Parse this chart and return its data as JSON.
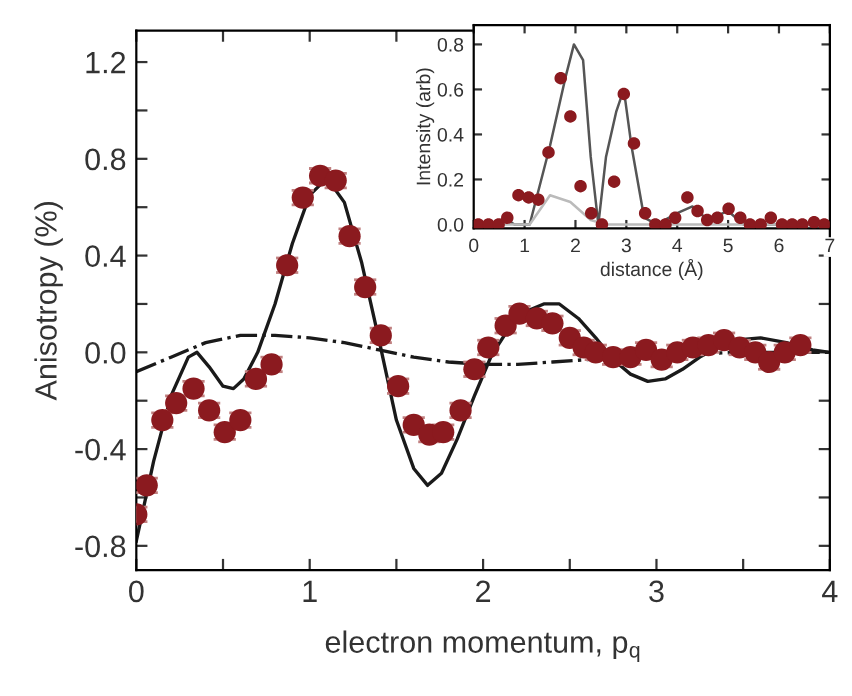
{
  "chart_data": [
    {
      "type": "scatter",
      "xlabel": "electron momentum, p$_{q}$",
      "ylabel": "Anisotropy (%)",
      "xlim": [
        0,
        4
      ],
      "ylim": [
        -0.9,
        1.33
      ],
      "xticks": [
        0,
        {
          "value": 0.5,
          "label": null
        },
        1,
        {
          "value": 1.5,
          "label": null
        },
        2,
        {
          "value": 2.5,
          "label": null
        },
        3,
        {
          "value": 3.5,
          "label": null
        },
        4
      ],
      "yticks": [
        {
          "value": -0.8,
          "label": "-0.8"
        },
        {
          "value": -0.6,
          "label": null
        },
        {
          "value": -0.4,
          "label": "-0.4"
        },
        {
          "value": -0.2,
          "label": null
        },
        {
          "value": 0.0,
          "label": "0.0"
        },
        {
          "value": 0.2,
          "label": null
        },
        {
          "value": 0.4,
          "label": "0.4"
        },
        {
          "value": 0.6,
          "label": null
        },
        {
          "value": 0.8,
          "label": "0.8"
        },
        {
          "value": 1.0,
          "label": null
        },
        {
          "value": 1.2,
          "label": "1.2"
        }
      ],
      "legend": false,
      "series": [
        {
          "type": "line",
          "color": "#1a1a1a",
          "line_style": "solid",
          "marker": "none",
          "x": [
            0,
            0.1,
            0.2,
            0.3,
            0.35,
            0.42,
            0.5,
            0.56,
            0.62,
            0.7,
            0.8,
            0.9,
            1.0,
            1.1,
            1.2,
            1.3,
            1.4,
            1.5,
            1.6,
            1.68,
            1.76,
            1.85,
            1.95,
            2.05,
            2.15,
            2.25,
            2.35,
            2.44,
            2.55,
            2.65,
            2.75,
            2.85,
            2.95,
            3.05,
            3.15,
            3.25,
            3.35,
            3.45,
            3.6,
            3.75,
            3.9,
            4.0
          ],
          "values": [
            -0.78,
            -0.45,
            -0.18,
            -0.02,
            0.0,
            -0.06,
            -0.14,
            -0.15,
            -0.11,
            0.0,
            0.2,
            0.45,
            0.65,
            0.72,
            0.62,
            0.37,
            0.05,
            -0.28,
            -0.48,
            -0.55,
            -0.5,
            -0.36,
            -0.18,
            -0.01,
            0.1,
            0.17,
            0.2,
            0.2,
            0.14,
            0.06,
            -0.03,
            -0.09,
            -0.12,
            -0.11,
            -0.07,
            -0.02,
            0.02,
            0.05,
            0.06,
            0.04,
            0.01,
            0.0
          ]
        },
        {
          "type": "line",
          "color": "#1a1a1a",
          "line_style": "dashdot",
          "marker": "none",
          "x": [
            0,
            0.2,
            0.4,
            0.6,
            0.8,
            1.0,
            1.2,
            1.4,
            1.6,
            1.8,
            2.0,
            2.2,
            2.4,
            2.6,
            2.8,
            3.0,
            3.5,
            4.0
          ],
          "values": [
            -0.08,
            -0.02,
            0.04,
            0.07,
            0.07,
            0.06,
            0.04,
            0.01,
            -0.02,
            -0.04,
            -0.05,
            -0.05,
            -0.04,
            -0.03,
            -0.02,
            -0.01,
            0.0,
            0.0
          ]
        },
        {
          "color": "#8b1a1f",
          "marker": "circle",
          "x": [
            0.0,
            0.06,
            0.15,
            0.23,
            0.33,
            0.42,
            0.51,
            0.6,
            0.69,
            0.78,
            0.87,
            0.96,
            1.06,
            1.15,
            1.23,
            1.32,
            1.41,
            1.51,
            1.6,
            1.69,
            1.77,
            1.87,
            1.95,
            2.03,
            2.13,
            2.21,
            2.31,
            2.4,
            2.5,
            2.58,
            2.65,
            2.75,
            2.85,
            2.94,
            3.03,
            3.12,
            3.21,
            3.3,
            3.39,
            3.48,
            3.57,
            3.65,
            3.74,
            3.83
          ],
          "values": [
            -0.67,
            -0.55,
            -0.28,
            -0.21,
            -0.15,
            -0.24,
            -0.33,
            -0.28,
            -0.11,
            -0.05,
            0.36,
            0.64,
            0.73,
            0.71,
            0.48,
            0.27,
            0.07,
            -0.14,
            -0.3,
            -0.34,
            -0.33,
            -0.24,
            -0.07,
            0.02,
            0.11,
            0.16,
            0.14,
            0.12,
            0.06,
            0.02,
            0.0,
            -0.02,
            -0.02,
            0.01,
            -0.03,
            0.0,
            0.02,
            0.03,
            0.05,
            0.02,
            0.0,
            -0.04,
            0.0,
            0.03
          ],
          "errors": [
            0.03,
            0.03,
            0.03,
            0.03,
            0.03,
            0.03,
            0.03,
            0.03,
            0.03,
            0.03,
            0.03,
            0.03,
            0.03,
            0.03,
            0.03,
            0.03,
            0.03,
            0.03,
            0.03,
            0.03,
            0.03,
            0.03,
            0.03,
            0.03,
            0.03,
            0.03,
            0.03,
            0.03,
            0.03,
            0.03,
            0.03,
            0.03,
            0.03,
            0.03,
            0.03,
            0.03,
            0.03,
            0.03,
            0.03,
            0.03,
            0.03,
            0.03,
            0.03,
            0.03
          ]
        }
      ]
    },
    {
      "type": "scatter",
      "xlabel": "distance (Å)",
      "ylabel": "Intensity (arb)",
      "xlim": [
        0,
        7
      ],
      "ylim": [
        -0.017,
        0.886
      ],
      "xticks": [
        0,
        1,
        2,
        3,
        4,
        5,
        6,
        7
      ],
      "yticks": [
        {
          "value": 0.0,
          "label": "0.0"
        },
        {
          "value": 0.2,
          "label": "0.2"
        },
        {
          "value": 0.4,
          "label": "0.4"
        },
        {
          "value": 0.6,
          "label": "0.6"
        },
        {
          "value": 0.8,
          "label": "0.8"
        }
      ],
      "grid": false,
      "legend": false,
      "series": [
        {
          "type": "line",
          "color": "#555555",
          "line_style": "solid",
          "marker": "none",
          "x": [
            0,
            0.4,
            0.6,
            0.8,
            1.1,
            1.5,
            1.8,
            1.97,
            2.15,
            2.3,
            2.45,
            2.6,
            2.8,
            2.95,
            3.1,
            3.35,
            3.6,
            4.0,
            4.3,
            4.6,
            5.0,
            5.3,
            7.0
          ],
          "values": [
            0.0,
            0.0,
            0.03,
            0.0,
            0.0,
            0.35,
            0.65,
            0.8,
            0.73,
            0.3,
            0.0,
            0.3,
            0.5,
            0.6,
            0.35,
            0.03,
            0.0,
            0.05,
            0.08,
            0.02,
            0.06,
            0.0,
            0.0
          ]
        },
        {
          "type": "line",
          "color": "#bbbbbb",
          "line_style": "solid",
          "marker": "none",
          "x": [
            0,
            1.1,
            1.5,
            1.9,
            2.3,
            2.6,
            7.0
          ],
          "values": [
            0.0,
            0.0,
            0.13,
            0.1,
            0.02,
            0.0,
            0.0
          ]
        },
        {
          "color": "#8b1a1f",
          "marker": "circle",
          "x": [
            0.09,
            0.29,
            0.49,
            0.66,
            0.88,
            1.08,
            1.27,
            1.47,
            1.71,
            1.9,
            2.1,
            2.31,
            2.52,
            2.76,
            2.95,
            3.15,
            3.37,
            3.57,
            3.77,
            3.96,
            4.2,
            4.4,
            4.59,
            4.79,
            5.01,
            5.24,
            5.43,
            5.64,
            5.84,
            6.06,
            6.26,
            6.46,
            6.69,
            6.89
          ],
          "values": [
            0.0,
            0.0,
            0.0,
            0.03,
            0.13,
            0.12,
            0.11,
            0.32,
            0.65,
            0.48,
            0.17,
            0.05,
            0.0,
            0.19,
            0.58,
            0.36,
            0.05,
            0.0,
            0.0,
            0.03,
            0.12,
            0.06,
            0.02,
            0.03,
            0.07,
            0.03,
            0.0,
            0.0,
            0.03,
            0.0,
            0.0,
            0.0,
            0.01,
            0.0
          ]
        }
      ]
    }
  ]
}
